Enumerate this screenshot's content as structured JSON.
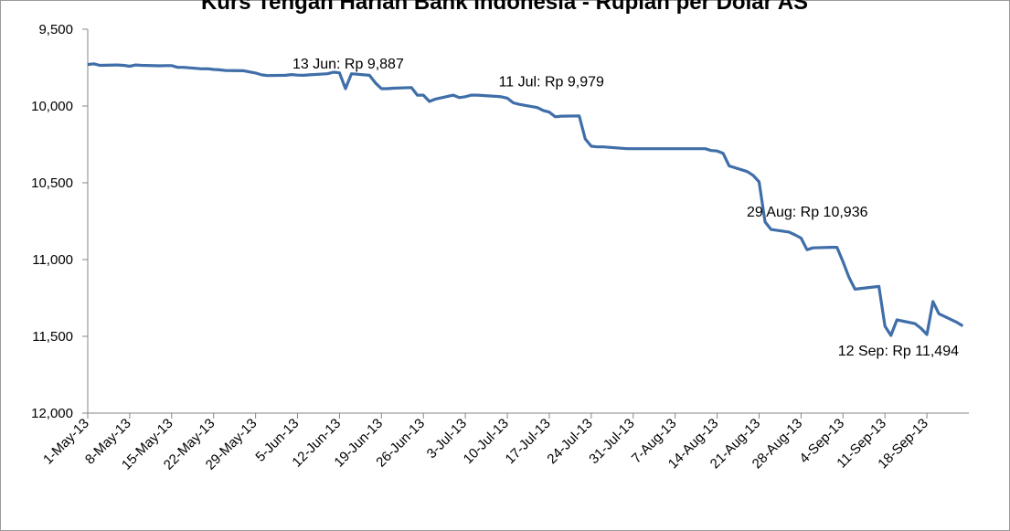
{
  "chart_data": {
    "type": "line",
    "title": "Kurs Tengah Harian Bank Indonesia - Rupiah per Dolar AS",
    "xlabel": "",
    "ylabel": "",
    "y_reversed": true,
    "ylim": [
      9500,
      12000
    ],
    "yticks": [
      9500,
      10000,
      10500,
      11000,
      11500,
      12000
    ],
    "ytick_labels": [
      "9,500",
      "10,000",
      "10,500",
      "11,000",
      "11,500",
      "12,000"
    ],
    "xtick_labels": [
      "1-May-13",
      "8-May-13",
      "15-May-13",
      "22-May-13",
      "29-May-13",
      "5-Jun-13",
      "12-Jun-13",
      "19-Jun-13",
      "26-Jun-13",
      "3-Jul-13",
      "10-Jul-13",
      "17-Jul-13",
      "24-Jul-13",
      "31-Jul-13",
      "7-Aug-13",
      "14-Aug-13",
      "21-Aug-13",
      "28-Aug-13",
      "4-Sep-13",
      "11-Sep-13",
      "18-Sep-13"
    ],
    "grid": false,
    "legend": "none",
    "line_color": "#3f6ea8",
    "series": [
      {
        "values": [
          [
            "2013-05-01",
            9730
          ],
          [
            "2013-05-02",
            9725
          ],
          [
            "2013-05-03",
            9735
          ],
          [
            "2013-05-06",
            9733
          ],
          [
            "2013-05-07",
            9735
          ],
          [
            "2013-05-08",
            9741
          ],
          [
            "2013-05-09",
            9733
          ],
          [
            "2013-05-10",
            9735
          ],
          [
            "2013-05-13",
            9738
          ],
          [
            "2013-05-14",
            9737
          ],
          [
            "2013-05-15",
            9737
          ],
          [
            "2013-05-16",
            9748
          ],
          [
            "2013-05-17",
            9748
          ],
          [
            "2013-05-20",
            9758
          ],
          [
            "2013-05-21",
            9757
          ],
          [
            "2013-05-22",
            9762
          ],
          [
            "2013-05-23",
            9764
          ],
          [
            "2013-05-24",
            9769
          ],
          [
            "2013-05-27",
            9770
          ],
          [
            "2013-05-28",
            9778
          ],
          [
            "2013-05-29",
            9785
          ],
          [
            "2013-05-30",
            9797
          ],
          [
            "2013-05-31",
            9802
          ],
          [
            "2013-06-03",
            9800
          ],
          [
            "2013-06-04",
            9795
          ],
          [
            "2013-06-05",
            9799
          ],
          [
            "2013-06-06",
            9800
          ],
          [
            "2013-06-07",
            9797
          ],
          [
            "2013-06-10",
            9790
          ],
          [
            "2013-06-11",
            9780
          ],
          [
            "2013-06-12",
            9784
          ],
          [
            "2013-06-13",
            9887
          ],
          [
            "2013-06-14",
            9790
          ],
          [
            "2013-06-17",
            9800
          ],
          [
            "2013-06-18",
            9850
          ],
          [
            "2013-06-19",
            9887
          ],
          [
            "2013-06-20",
            9887
          ],
          [
            "2013-06-21",
            9884
          ],
          [
            "2013-06-24",
            9880
          ],
          [
            "2013-06-25",
            9930
          ],
          [
            "2013-06-26",
            9929
          ],
          [
            "2013-06-27",
            9970
          ],
          [
            "2013-06-28",
            9955
          ],
          [
            "2013-07-01",
            9929
          ],
          [
            "2013-07-02",
            9945
          ],
          [
            "2013-07-03",
            9939
          ],
          [
            "2013-07-04",
            9929
          ],
          [
            "2013-07-05",
            9929
          ],
          [
            "2013-07-08",
            9937
          ],
          [
            "2013-07-09",
            9940
          ],
          [
            "2013-07-10",
            9949
          ],
          [
            "2013-07-11",
            9979
          ],
          [
            "2013-07-12",
            9989
          ],
          [
            "2013-07-15",
            10010
          ],
          [
            "2013-07-16",
            10029
          ],
          [
            "2013-07-17",
            10040
          ],
          [
            "2013-07-18",
            10070
          ],
          [
            "2013-07-19",
            10066
          ],
          [
            "2013-07-22",
            10064
          ],
          [
            "2013-07-23",
            10214
          ],
          [
            "2013-07-24",
            10262
          ],
          [
            "2013-07-25",
            10266
          ],
          [
            "2013-07-26",
            10266
          ],
          [
            "2013-07-29",
            10275
          ],
          [
            "2013-07-30",
            10278
          ],
          [
            "2013-07-31",
            10278
          ],
          [
            "2013-08-01",
            10278
          ],
          [
            "2013-08-02",
            10278
          ],
          [
            "2013-08-12",
            10278
          ],
          [
            "2013-08-13",
            10290
          ],
          [
            "2013-08-14",
            10293
          ],
          [
            "2013-08-15",
            10308
          ],
          [
            "2013-08-16",
            10390
          ],
          [
            "2013-08-19",
            10427
          ],
          [
            "2013-08-20",
            10451
          ],
          [
            "2013-08-21",
            10494
          ],
          [
            "2013-08-22",
            10754
          ],
          [
            "2013-08-23",
            10804
          ],
          [
            "2013-08-26",
            10821
          ],
          [
            "2013-08-27",
            10839
          ],
          [
            "2013-08-28",
            10860
          ],
          [
            "2013-08-29",
            10936
          ],
          [
            "2013-08-30",
            10924
          ],
          [
            "2013-09-02",
            10920
          ],
          [
            "2013-09-03",
            10920
          ],
          [
            "2013-09-04",
            11014
          ],
          [
            "2013-09-05",
            11115
          ],
          [
            "2013-09-06",
            11193
          ],
          [
            "2013-09-09",
            11179
          ],
          [
            "2013-09-10",
            11175
          ],
          [
            "2013-09-11",
            11434
          ],
          [
            "2013-09-12",
            11494
          ],
          [
            "2013-09-13",
            11393
          ],
          [
            "2013-09-16",
            11417
          ],
          [
            "2013-09-17",
            11447
          ],
          [
            "2013-09-18",
            11488
          ],
          [
            "2013-09-19",
            11273
          ],
          [
            "2013-09-20",
            11353
          ],
          [
            "2013-09-23",
            11409
          ],
          [
            "2013-09-24",
            11432
          ]
        ]
      }
    ],
    "annotations": [
      {
        "date": "2013-06-13",
        "value": 9887,
        "text": "13 Jun: Rp 9,887"
      },
      {
        "date": "2013-07-11",
        "value": 9979,
        "text": "11 Jul: Rp 9,979"
      },
      {
        "date": "2013-08-29",
        "value": 10936,
        "text": "29 Aug: Rp 10,936"
      },
      {
        "date": "2013-09-12",
        "value": 11494,
        "text": "12 Sep: Rp 11,494"
      }
    ]
  }
}
